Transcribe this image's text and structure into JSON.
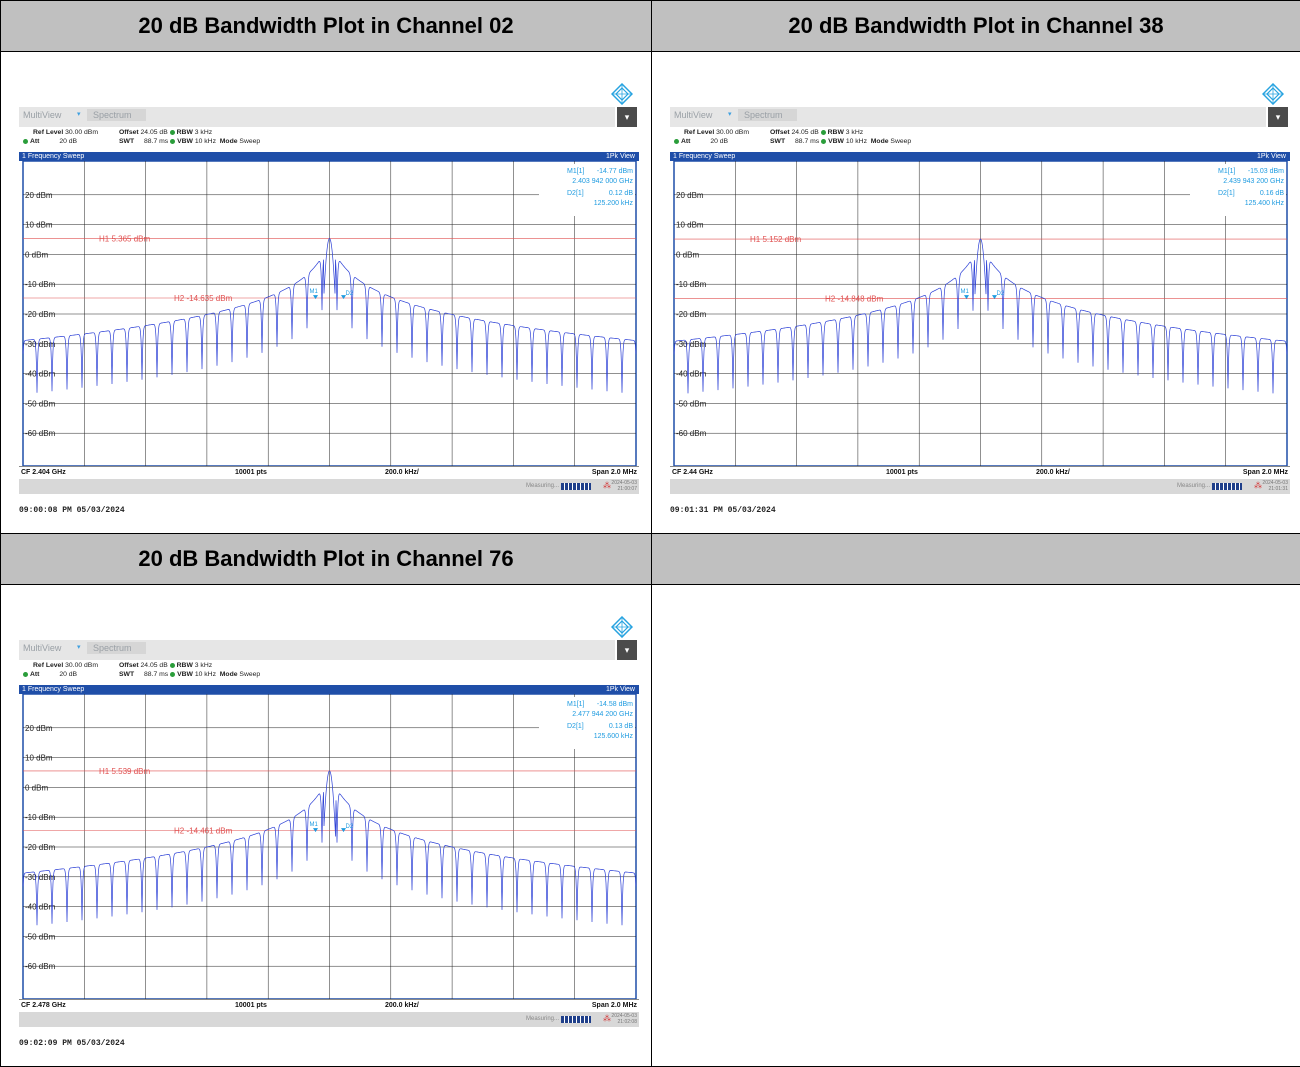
{
  "headers": [
    "20 dB Bandwidth Plot in Channel 02",
    "20 dB Bandwidth Plot in Channel 38",
    "20 dB Bandwidth Plot in Channel 76",
    ""
  ],
  "common": {
    "tab1": "MultiView",
    "tab2": "Spectrum",
    "menu_glyph": "▾",
    "ref_level_label": "Ref Level",
    "ref_level": "30.00 dBm",
    "offset_label": "Offset",
    "offset": "24.05 dB",
    "rbw_label": "RBW",
    "rbw": "3 kHz",
    "att_label": "Att",
    "att": "20 dB",
    "swt_label": "SWT",
    "swt": "88.7 ms",
    "vbw_label": "VBW",
    "vbw": "10 kHz",
    "mode_label": "Mode",
    "mode": "Sweep",
    "sweep_title": "1 Frequency Sweep",
    "view": "1Pk View",
    "pts": "10001 pts",
    "div": "200.0 kHz/",
    "span": "Span 2.0 MHz",
    "measuring": "Measuring...",
    "m1_label": "M1[1]",
    "d2_label": "D2[1]",
    "marker_m1": "M1",
    "marker_d2": "D2",
    "y_ticks": [
      "20 dBm",
      "10 dBm",
      "0 dBm",
      "-10 dBm",
      "-20 dBm",
      "-30 dBm",
      "-40 dBm",
      "-50 dBm",
      "-60 dBm"
    ]
  },
  "plots": [
    {
      "cf": "CF 2.404 GHz",
      "m1_value": "-14.77 dBm",
      "m1_freq": "2.403 942 000 GHz",
      "d2_value": "0.12 dB",
      "d2_freq": "125.200 kHz",
      "h1": "H1 5.365 dBm",
      "h2": "H2 -14.635 dBm",
      "date": "2024-05-03",
      "time": "21:00:07",
      "timestamp": "09:00:08 PM  05/03/2024"
    },
    {
      "cf": "CF 2.44 GHz",
      "m1_value": "-15.03 dBm",
      "m1_freq": "2.439 943 200 GHz",
      "d2_value": "0.16 dB",
      "d2_freq": "125.400 kHz",
      "h1": "H1 5.152 dBm",
      "h2": "H2 -14.848 dBm",
      "date": "2024-05-03",
      "time": "21:01:31",
      "timestamp": "09:01:31 PM  05/03/2024"
    },
    {
      "cf": "CF 2.478 GHz",
      "m1_value": "-14.58 dBm",
      "m1_freq": "2.477 944 200 GHz",
      "d2_value": "0.13 dB",
      "d2_freq": "125.600 kHz",
      "h1": "H1 5.539 dBm",
      "h2": "H2 -14.461 dBm",
      "date": "2024-05-03",
      "time": "21:02:08",
      "timestamp": "09:02:09 PM  05/03/2024"
    }
  ],
  "chart_data": [
    {
      "type": "line",
      "title": "20 dB Bandwidth Plot in Channel 02",
      "xlabel": "CF 2.404 GHz",
      "ylabel": "",
      "x_unit": "GHz",
      "xlim": [
        2.403,
        2.405
      ],
      "ylim": [
        -70,
        30
      ],
      "yticks": [
        20,
        10,
        0,
        -10,
        -20,
        -30,
        -40,
        -50,
        -60
      ],
      "grid": true,
      "peak_dBm": 5.365,
      "thresholds": [
        {
          "name": "H1",
          "value": 5.365
        },
        {
          "name": "H2",
          "value": -14.635
        }
      ],
      "markers": [
        {
          "name": "M1",
          "x": 2.403942,
          "y": -14.77
        },
        {
          "name": "D2",
          "x_offset_khz": 125.2,
          "y_delta_db": 0.12
        }
      ],
      "series": [
        {
          "values_description_free": true,
          "peak_x": 2.404,
          "peak_y": 5.365,
          "floor_y_edges": -45
        }
      ]
    },
    {
      "type": "line",
      "title": "20 dB Bandwidth Plot in Channel 38",
      "xlabel": "CF 2.44 GHz",
      "ylabel": "",
      "x_unit": "GHz",
      "xlim": [
        2.439,
        2.441
      ],
      "ylim": [
        -70,
        30
      ],
      "yticks": [
        20,
        10,
        0,
        -10,
        -20,
        -30,
        -40,
        -50,
        -60
      ],
      "grid": true,
      "peak_dBm": 5.152,
      "thresholds": [
        {
          "name": "H1",
          "value": 5.152
        },
        {
          "name": "H2",
          "value": -14.848
        }
      ],
      "markers": [
        {
          "name": "M1",
          "x": 2.4399432,
          "y": -15.03
        },
        {
          "name": "D2",
          "x_offset_khz": 125.4,
          "y_delta_db": 0.16
        }
      ],
      "series": [
        {
          "peak_x": 2.44,
          "peak_y": 5.152,
          "floor_y_edges": -45
        }
      ]
    },
    {
      "type": "line",
      "title": "20 dB Bandwidth Plot in Channel 76",
      "xlabel": "CF 2.478 GHz",
      "ylabel": "",
      "x_unit": "GHz",
      "xlim": [
        2.477,
        2.479
      ],
      "ylim": [
        -70,
        30
      ],
      "yticks": [
        20,
        10,
        0,
        -10,
        -20,
        -30,
        -40,
        -50,
        -60
      ],
      "grid": true,
      "peak_dBm": 5.539,
      "thresholds": [
        {
          "name": "H1",
          "value": 5.539
        },
        {
          "name": "H2",
          "value": -14.461
        }
      ],
      "markers": [
        {
          "name": "M1",
          "x": 2.4779442,
          "y": -14.58
        },
        {
          "name": "D2",
          "x_offset_khz": 125.6,
          "y_delta_db": 0.13
        }
      ],
      "series": [
        {
          "peak_x": 2.478,
          "peak_y": 5.539,
          "floor_y_edges": -45
        }
      ]
    }
  ],
  "colors": {
    "trace": "#2b3fd6",
    "threshold": "#e05050",
    "marker": "#1e9be0",
    "title_bar": "#1f4ea8",
    "header_bg": "#c0c0c0"
  }
}
